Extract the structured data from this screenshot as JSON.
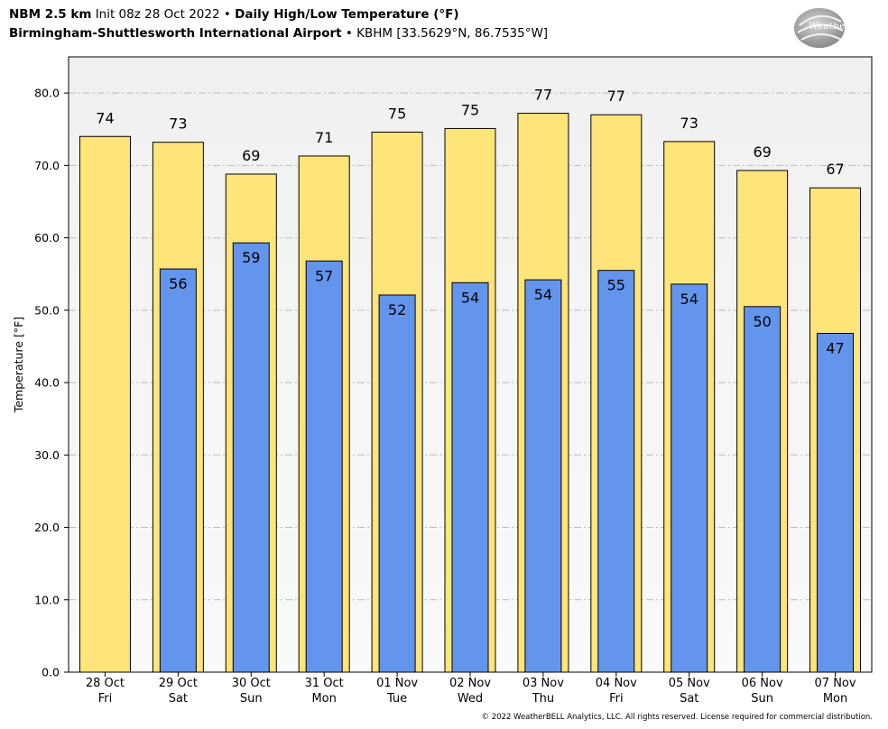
{
  "header": {
    "model": "NBM 2.5 km",
    "init": "Init 08z 28 Oct 2022",
    "sep1": "•",
    "title": "Daily High/Low Temperature (°F)",
    "station": "Birmingham-Shuttlesworth International Airport",
    "sep2": "•",
    "station_meta": "KBHM [33.5629°N, 86.7535°W]"
  },
  "logo": {
    "text": "WeatherBELL"
  },
  "footer": "© 2022 WeatherBELL Analytics, LLC. All rights reserved. License required for commercial distribution.",
  "colors": {
    "high": "#ffe47a",
    "low": "#6495ed",
    "plot_bg_top": "#f0f0f0",
    "plot_bg_bottom": "#fafafa",
    "grid": "#bbbbbb"
  },
  "chart_data": {
    "type": "bar",
    "title": "Daily High/Low Temperature (°F)",
    "ylabel": "Temperature [°F]",
    "ylim": [
      0,
      85
    ],
    "yticks": [
      "0.0",
      "10.0",
      "20.0",
      "30.0",
      "40.0",
      "50.0",
      "60.0",
      "70.0",
      "80.0"
    ],
    "ytick_values": [
      0,
      10,
      20,
      30,
      40,
      50,
      60,
      70,
      80
    ],
    "grid": true,
    "categories": [
      {
        "date": "28 Oct",
        "day": "Fri"
      },
      {
        "date": "29 Oct",
        "day": "Sat"
      },
      {
        "date": "30 Oct",
        "day": "Sun"
      },
      {
        "date": "31 Oct",
        "day": "Mon"
      },
      {
        "date": "01 Nov",
        "day": "Tue"
      },
      {
        "date": "02 Nov",
        "day": "Wed"
      },
      {
        "date": "03 Nov",
        "day": "Thu"
      },
      {
        "date": "04 Nov",
        "day": "Fri"
      },
      {
        "date": "05 Nov",
        "day": "Sat"
      },
      {
        "date": "06 Nov",
        "day": "Sun"
      },
      {
        "date": "07 Nov",
        "day": "Mon"
      }
    ],
    "series": [
      {
        "key": "high",
        "values": [
          74.0,
          73.2,
          68.8,
          71.3,
          74.6,
          75.1,
          77.2,
          77.0,
          73.3,
          69.3,
          66.9
        ],
        "labels": [
          "74",
          "73",
          "69",
          "71",
          "75",
          "75",
          "77",
          "77",
          "73",
          "69",
          "67"
        ]
      },
      {
        "key": "low",
        "values": [
          null,
          55.7,
          59.3,
          56.8,
          52.1,
          53.8,
          54.2,
          55.5,
          53.6,
          50.5,
          46.8
        ],
        "labels": [
          null,
          "56",
          "59",
          "57",
          "52",
          "54",
          "54",
          "55",
          "54",
          "50",
          "47"
        ]
      }
    ]
  }
}
